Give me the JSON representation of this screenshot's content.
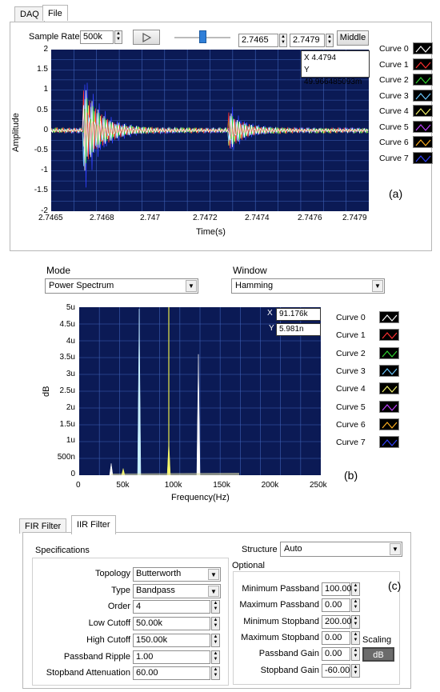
{
  "panel_a": {
    "tabs": [
      "DAQ",
      "File"
    ],
    "sample_rates_label": "Sample Rates",
    "sample_rates_value": "500k",
    "range_start": "2.7465",
    "range_end": "2.7479",
    "middle_button": "Middle",
    "cursor": {
      "x_label": "X",
      "x_value": "4.4794",
      "y_label": "Y",
      "y_value": "49.966485093m"
    },
    "y_axis_label": "Amplitude",
    "x_axis_label": "Time(s)",
    "y_ticks": [
      "2",
      "1.5",
      "1",
      "0.5",
      "0",
      "-0.5",
      "-1",
      "-1.5",
      "-2"
    ],
    "x_ticks": [
      "2.7465",
      "2.7468",
      "2.747",
      "2.7472",
      "2.7474",
      "2.7476",
      "2.7479"
    ],
    "legend": [
      "Curve 0",
      "Curve 1",
      "Curve 2",
      "Curve 3",
      "Curve 4",
      "Curve 5",
      "Curve 6",
      "Curve 7"
    ],
    "figure_label": "(a)"
  },
  "panel_b": {
    "mode_label": "Mode",
    "mode_value": "Power Spectrum",
    "window_label": "Window",
    "window_value": "Hamming",
    "cursor": {
      "x_label": "X",
      "x_value": "91.176k",
      "y_label": "Y",
      "y_value": "5.981n"
    },
    "y_axis_label": "dB",
    "x_axis_label": "Frequency(Hz)",
    "y_ticks": [
      "5u",
      "4.5u",
      "4u",
      "3.5u",
      "3u",
      "2.5u",
      "2u",
      "1.5u",
      "1u",
      "500n",
      "0"
    ],
    "x_ticks": [
      "0",
      "50k",
      "100k",
      "150k",
      "200k",
      "250k"
    ],
    "legend": [
      "Curve 0",
      "Curve 1",
      "Curve 2",
      "Curve 3",
      "Curve 4",
      "Curve 5",
      "Curve 6",
      "Curve 7"
    ],
    "figure_label": "(b)"
  },
  "panel_c": {
    "tabs": [
      "FIR Filter",
      "IIR Filter"
    ],
    "specifications_label": "Specifications",
    "structure_label": "Structure",
    "structure_value": "Auto",
    "optional_label": "Optional",
    "left_fields": [
      {
        "label": "Topology",
        "value": "Butterworth",
        "kind": "dropdown"
      },
      {
        "label": "Type",
        "value": "Bandpass",
        "kind": "dropdown"
      },
      {
        "label": "Order",
        "value": "4",
        "kind": "spin"
      },
      {
        "label": "Low Cutoff",
        "value": "50.00k",
        "kind": "spin"
      },
      {
        "label": "High Cutoff",
        "value": "150.00k",
        "kind": "spin"
      },
      {
        "label": "Passband Ripple",
        "value": "1.00",
        "kind": "spin"
      },
      {
        "label": "Stopband Attenuation",
        "value": "60.00",
        "kind": "spin"
      }
    ],
    "right_fields": [
      {
        "label": "Minimum Passband",
        "value": "100.00"
      },
      {
        "label": "Maximum Passband",
        "value": "0.00"
      },
      {
        "label": "Minimum Stopband",
        "value": "200.00"
      },
      {
        "label": "Maximum Stopband",
        "value": "0.00"
      },
      {
        "label": "Passband Gain",
        "value": "0.00"
      },
      {
        "label": "Stopband Gain",
        "value": "-60.00"
      }
    ],
    "scaling_label": "Scaling",
    "db_button": "dB",
    "figure_label": "(c)"
  },
  "colors": {
    "plot_bg": "#0b1a55",
    "grid": "#3f62b8",
    "curves": [
      "#ffffff",
      "#ff3030",
      "#2fd52f",
      "#6ac8ff",
      "#f5f56a",
      "#c040ff",
      "#ffb020",
      "#3040ff"
    ]
  }
}
